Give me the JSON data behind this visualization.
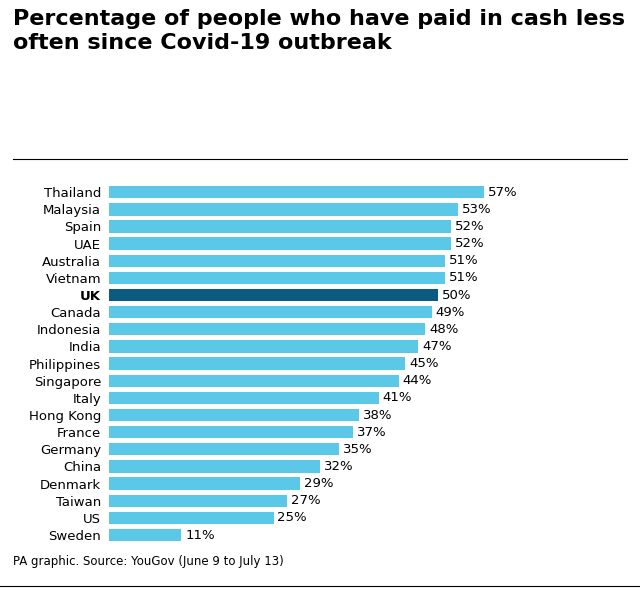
{
  "title": "Percentage of people who have paid in cash less\noften since Covid-19 outbreak",
  "categories": [
    "Thailand",
    "Malaysia",
    "Spain",
    "UAE",
    "Australia",
    "Vietnam",
    "UK",
    "Canada",
    "Indonesia",
    "India",
    "Philippines",
    "Singapore",
    "Italy",
    "Hong Kong",
    "France",
    "Germany",
    "China",
    "Denmark",
    "Taiwan",
    "US",
    "Sweden"
  ],
  "values": [
    57,
    53,
    52,
    52,
    51,
    51,
    50,
    49,
    48,
    47,
    45,
    44,
    41,
    38,
    37,
    35,
    32,
    29,
    27,
    25,
    11
  ],
  "bar_color_default": "#5bc8e8",
  "bar_color_uk": "#0a5a82",
  "uk_index": 6,
  "caption": "PA graphic. Source: YouGov (June 9 to July 13)",
  "background_color": "#ffffff",
  "title_fontsize": 16,
  "label_fontsize": 9.5,
  "value_fontsize": 9.5,
  "caption_fontsize": 8.5,
  "xlim_max": 68
}
